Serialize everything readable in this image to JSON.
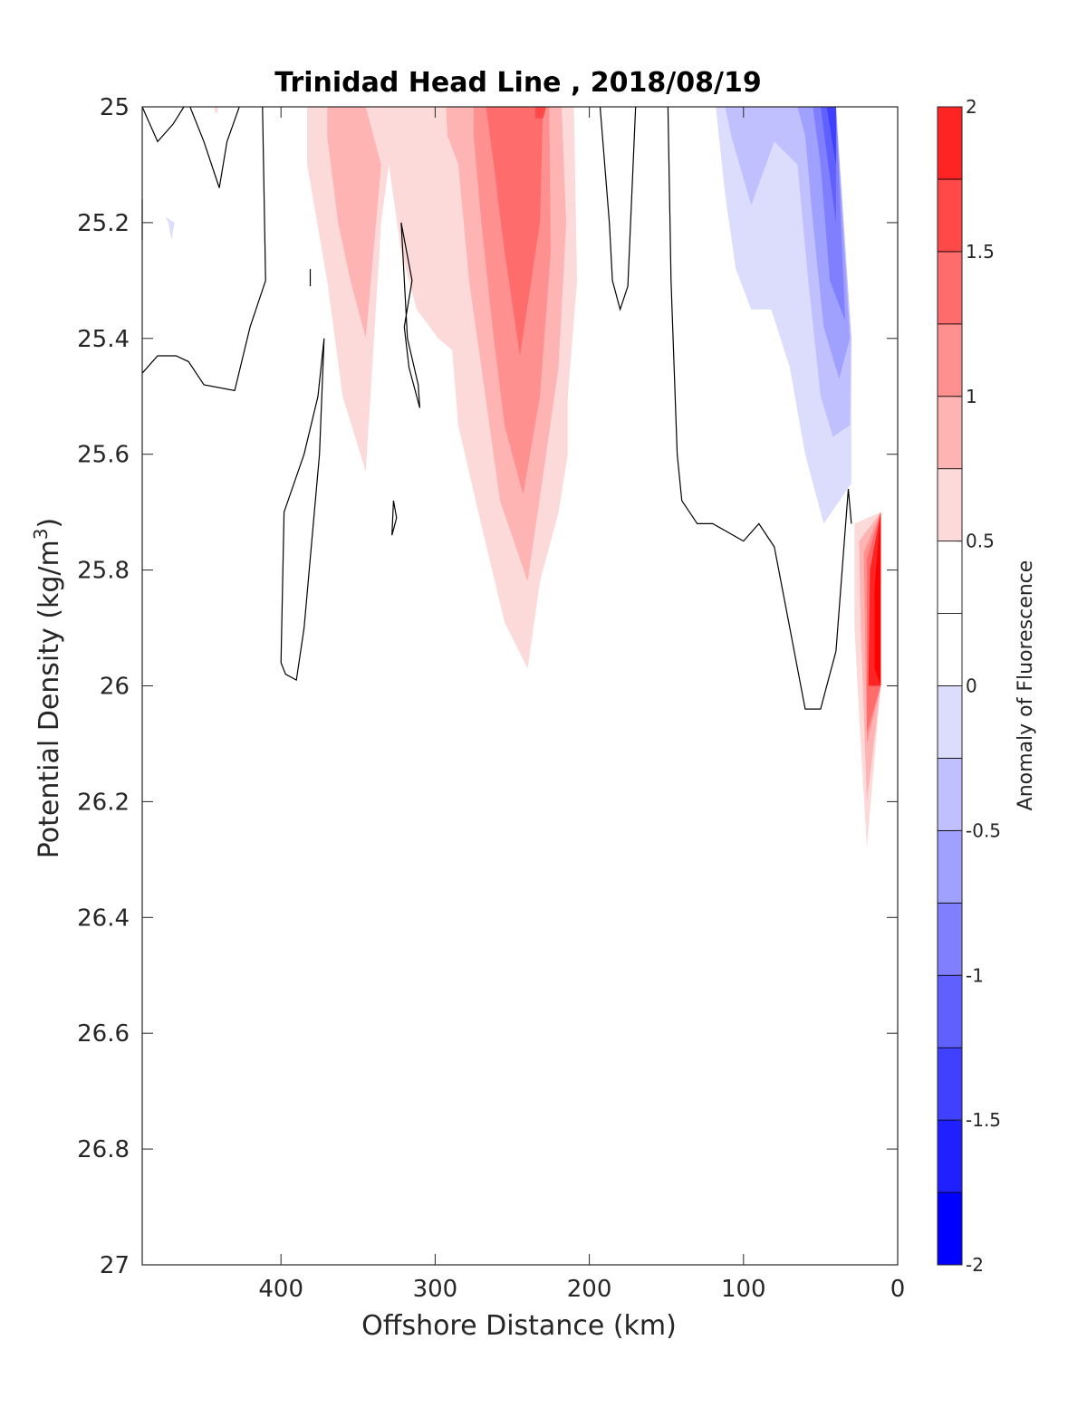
{
  "chart_data": {
    "type": "heatmap",
    "title": "Trinidad Head Line , 2018/08/19",
    "xlabel": "Offshore Distance (km)",
    "ylabel": "Potential Density (kg/m",
    "ylabel_superscript": "3",
    "ylabel_suffix": ")",
    "colorbar_label": "Anomaly of Fluorescence",
    "xlim": [
      490,
      0
    ],
    "ylim": [
      25,
      27
    ],
    "y_reversed": true,
    "x_reversed": true,
    "grid": false,
    "x_ticks": [
      400,
      300,
      200,
      100,
      0
    ],
    "x_tick_labels": [
      "400",
      "300",
      "200",
      "100",
      "0"
    ],
    "y_ticks": [
      25,
      25.2,
      25.4,
      25.6,
      25.8,
      26,
      26.2,
      26.4,
      26.6,
      26.8,
      27
    ],
    "y_tick_labels": [
      "25",
      "25.2",
      "25.4",
      "25.6",
      "25.8",
      "26",
      "26.2",
      "26.4",
      "26.6",
      "26.8",
      "27"
    ],
    "colorbar": {
      "range": [
        -2,
        2
      ],
      "levels": [
        -2,
        -1.75,
        -1.5,
        -1.25,
        -1,
        -0.75,
        -0.5,
        -0.25,
        0,
        0.25,
        0.5,
        0.75,
        1,
        1.25,
        1.5,
        1.75,
        2
      ],
      "colors": [
        "#0000ff",
        "#2020ff",
        "#4040ff",
        "#6060ff",
        "#8080ff",
        "#a0a0ff",
        "#c0c0ff",
        "#dcdcfc",
        "#ffffff",
        "#ffffff",
        "#fddada",
        "#ffb4b4",
        "#ff9090",
        "#ff6c6c",
        "#ff4848",
        "#ff2424",
        "#ff0000"
      ],
      "ticks": [
        2,
        1.5,
        1,
        0.5,
        0,
        -0.5,
        -1,
        -1.5,
        -2
      ],
      "tick_labels": [
        "2",
        "1.5",
        "1",
        "0.5",
        "0",
        "-0.5",
        "-1",
        "-1.5",
        "-2"
      ]
    },
    "filled_contours": [
      {
        "level": 0.25,
        "color": "#fddada",
        "points": [
          [
            383,
            25
          ],
          [
            210,
            25
          ],
          [
            208,
            25.3
          ],
          [
            214,
            25.5
          ],
          [
            214,
            25.6
          ],
          [
            220,
            25.7
          ],
          [
            232,
            25.82
          ],
          [
            240,
            25.97
          ],
          [
            255,
            25.89
          ],
          [
            272,
            25.7
          ],
          [
            285,
            25.55
          ],
          [
            289,
            25.42
          ],
          [
            298,
            25.4
          ],
          [
            312,
            25.35
          ],
          [
            322,
            25.25
          ],
          [
            330,
            25.1
          ],
          [
            335,
            25.2
          ],
          [
            345,
            25.63
          ],
          [
            360,
            25.5
          ],
          [
            370,
            25.3
          ],
          [
            383,
            25.1
          ]
        ]
      },
      {
        "level": 0.5,
        "color": "#ffb4b4",
        "points": [
          [
            370,
            25
          ],
          [
            345,
            25
          ],
          [
            335,
            25.1
          ],
          [
            345,
            25.4
          ],
          [
            355,
            25.3
          ],
          [
            363,
            25.2
          ],
          [
            370,
            25.05
          ]
        ]
      },
      {
        "level": 0.5,
        "color": "#ffb4b4",
        "points": [
          [
            293,
            25
          ],
          [
            218,
            25
          ],
          [
            215,
            25.2
          ],
          [
            220,
            25.45
          ],
          [
            228,
            25.6
          ],
          [
            240,
            25.82
          ],
          [
            258,
            25.68
          ],
          [
            270,
            25.45
          ],
          [
            278,
            25.3
          ],
          [
            285,
            25.1
          ],
          [
            292,
            25.05
          ]
        ]
      },
      {
        "level": 0.75,
        "color": "#ff9090",
        "points": [
          [
            275,
            25
          ],
          [
            226,
            25
          ],
          [
            225,
            25.25
          ],
          [
            232,
            25.5
          ],
          [
            243,
            25.67
          ],
          [
            255,
            25.55
          ],
          [
            262,
            25.4
          ],
          [
            270,
            25.2
          ],
          [
            275,
            25.05
          ]
        ]
      },
      {
        "level": 1.0,
        "color": "#ff6c6c",
        "points": [
          [
            267,
            25
          ],
          [
            230,
            25
          ],
          [
            232,
            25.2
          ],
          [
            245,
            25.43
          ],
          [
            255,
            25.25
          ],
          [
            262,
            25.1
          ]
        ]
      },
      {
        "level": 1.25,
        "color": "#ff4848",
        "points": [
          [
            235,
            25
          ],
          [
            228,
            25
          ],
          [
            230,
            25.02
          ],
          [
            235,
            25.02
          ]
        ]
      },
      {
        "level": -0.25,
        "color": "#dcdcfc",
        "points": [
          [
            118,
            25
          ],
          [
            40,
            25
          ],
          [
            30,
            25.4
          ],
          [
            30,
            25.65
          ],
          [
            48,
            25.72
          ],
          [
            60,
            25.6
          ],
          [
            70,
            25.45
          ],
          [
            82,
            25.35
          ],
          [
            95,
            25.35
          ],
          [
            105,
            25.28
          ],
          [
            112,
            25.15
          ]
        ]
      },
      {
        "level": -0.5,
        "color": "#c0c0ff",
        "points": [
          [
            112,
            25
          ],
          [
            40,
            25
          ],
          [
            30,
            25.4
          ],
          [
            31,
            25.55
          ],
          [
            42,
            25.57
          ],
          [
            50,
            25.5
          ],
          [
            58,
            25.3
          ],
          [
            65,
            25.1
          ],
          [
            80,
            25.06
          ],
          [
            95,
            25.17
          ],
          [
            108,
            25.05
          ]
        ]
      },
      {
        "level": -0.75,
        "color": "#a0a0ff",
        "points": [
          [
            65,
            25
          ],
          [
            40,
            25
          ],
          [
            31,
            25.4
          ],
          [
            38,
            25.47
          ],
          [
            48,
            25.38
          ],
          [
            55,
            25.2
          ],
          [
            60,
            25.05
          ]
        ]
      },
      {
        "level": -1.0,
        "color": "#8080ff",
        "points": [
          [
            55,
            25
          ],
          [
            40,
            25
          ],
          [
            34,
            25.37
          ],
          [
            44,
            25.3
          ],
          [
            50,
            25.1
          ]
        ]
      },
      {
        "level": -1.25,
        "color": "#6060ff",
        "points": [
          [
            50,
            25
          ],
          [
            40,
            25
          ],
          [
            40,
            25.2
          ],
          [
            45,
            25.1
          ]
        ]
      },
      {
        "level": -1.5,
        "color": "#4040ff",
        "points": [
          [
            46,
            25
          ],
          [
            40,
            25
          ],
          [
            40,
            25.1
          ]
        ]
      },
      {
        "level": 0.25,
        "color": "#fddada",
        "points": [
          [
            28,
            25.72
          ],
          [
            11,
            25.7
          ],
          [
            11,
            26.0
          ],
          [
            20,
            26.28
          ],
          [
            24,
            26.1
          ],
          [
            28,
            25.9
          ]
        ]
      },
      {
        "level": 0.5,
        "color": "#ffb4b4",
        "points": [
          [
            25,
            25.75
          ],
          [
            11,
            25.7
          ],
          [
            11,
            26.0
          ],
          [
            20,
            26.2
          ],
          [
            24,
            25.9
          ]
        ]
      },
      {
        "level": 0.75,
        "color": "#ff9090",
        "points": [
          [
            22,
            25.77
          ],
          [
            11,
            25.7
          ],
          [
            11,
            26.0
          ],
          [
            20,
            26.1
          ]
        ]
      },
      {
        "level": 1.0,
        "color": "#ff6c6c",
        "points": [
          [
            20,
            25.78
          ],
          [
            11,
            25.7
          ],
          [
            11,
            26.0
          ],
          [
            20,
            26.08
          ]
        ]
      },
      {
        "level": 1.5,
        "color": "#ff2424",
        "points": [
          [
            18,
            25.8
          ],
          [
            11,
            25.7
          ],
          [
            11,
            26.0
          ],
          [
            19,
            26.0
          ]
        ]
      },
      {
        "level": 1.75,
        "color": "#ff0000",
        "points": [
          [
            15,
            25.83
          ],
          [
            11,
            25.7
          ],
          [
            11,
            26.0
          ],
          [
            15,
            25.97
          ]
        ]
      },
      {
        "level": -0.25,
        "color": "#dcdcfc",
        "points": [
          [
            475,
            25.19
          ],
          [
            473,
            25.2
          ],
          [
            471,
            25.23
          ],
          [
            469,
            25.2
          ]
        ]
      },
      {
        "level": 0.25,
        "color": "#fddada",
        "points": [
          [
            443,
            25
          ],
          [
            441,
            25
          ],
          [
            441,
            25.01
          ],
          [
            443,
            25.01
          ]
        ]
      }
    ],
    "contour_lines": [
      {
        "level": 0,
        "points": [
          [
            490,
            25.16
          ],
          [
            490,
            25.23
          ]
        ]
      },
      {
        "level": 0,
        "points": [
          [
            490,
            25.46
          ],
          [
            480,
            25.43
          ],
          [
            468,
            25.43
          ],
          [
            460,
            25.44
          ],
          [
            450,
            25.48
          ],
          [
            430,
            25.49
          ],
          [
            420,
            25.38
          ],
          [
            410,
            25.3
          ],
          [
            412,
            25.0
          ]
        ]
      },
      {
        "level": 0,
        "points": [
          [
            490,
            25
          ],
          [
            480,
            25.06
          ],
          [
            470,
            25.03
          ],
          [
            463,
            25.0
          ]
        ]
      },
      {
        "level": 0,
        "points": [
          [
            459,
            25
          ],
          [
            450,
            25.06
          ],
          [
            440,
            25.14
          ],
          [
            435,
            25.06
          ],
          [
            427,
            25.0
          ]
        ]
      },
      {
        "level": 0,
        "points": [
          [
            372,
            25.4
          ],
          [
            375,
            25.6
          ],
          [
            385,
            25.9
          ],
          [
            390,
            25.99
          ],
          [
            397,
            25.98
          ],
          [
            400,
            25.96
          ],
          [
            398,
            25.7
          ],
          [
            385,
            25.6
          ],
          [
            376,
            25.5
          ],
          [
            372,
            25.4
          ]
        ]
      },
      {
        "level": 0,
        "points": [
          [
            381,
            25.28
          ],
          [
            381,
            25.31
          ]
        ]
      },
      {
        "level": 0,
        "points": [
          [
            327,
            25.68
          ],
          [
            325,
            25.71
          ],
          [
            328,
            25.74
          ],
          [
            327,
            25.68
          ]
        ]
      },
      {
        "level": 0,
        "points": [
          [
            322,
            25.2
          ],
          [
            315,
            25.3
          ],
          [
            320,
            25.38
          ],
          [
            317,
            25.45
          ],
          [
            310,
            25.52
          ],
          [
            311,
            25.48
          ],
          [
            318,
            25.4
          ],
          [
            322,
            25.2
          ]
        ]
      },
      {
        "level": 0,
        "points": [
          [
            193,
            25
          ],
          [
            187,
            25.2
          ],
          [
            185,
            25.3
          ],
          [
            180,
            25.35
          ],
          [
            175,
            25.31
          ],
          [
            170,
            25.0
          ]
        ]
      },
      {
        "level": 0,
        "points": [
          [
            149,
            25
          ],
          [
            147,
            25.3
          ],
          [
            143,
            25.6
          ],
          [
            140,
            25.68
          ],
          [
            130,
            25.72
          ],
          [
            120,
            25.72
          ],
          [
            100,
            25.75
          ],
          [
            90,
            25.72
          ],
          [
            80,
            25.76
          ],
          [
            70,
            25.9
          ],
          [
            60,
            26.04
          ],
          [
            50,
            26.04
          ],
          [
            40,
            25.94
          ],
          [
            32,
            25.66
          ],
          [
            30,
            25.72
          ]
        ]
      }
    ]
  }
}
